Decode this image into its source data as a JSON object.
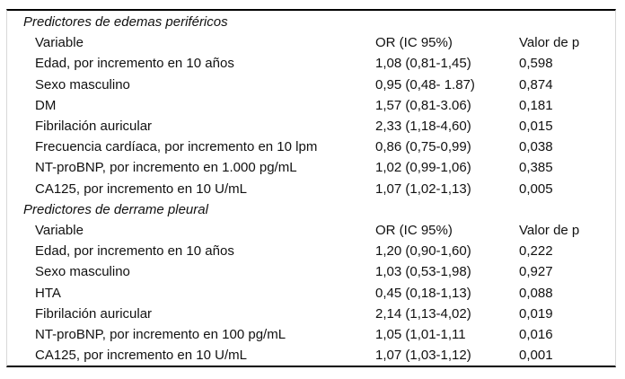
{
  "colors": {
    "rule": "#000000",
    "side_border": "#d8d8d8",
    "text": "#111111",
    "background": "#ffffff"
  },
  "sections": [
    {
      "title": "Predictores de edemas periféricos",
      "header": {
        "variable": "Variable",
        "or": "OR (IC 95%)",
        "p": "Valor de p"
      },
      "rows": [
        {
          "variable": "Edad, por incremento en 10 años",
          "or": "1,08 (0,81-1,45)",
          "p": "0,598"
        },
        {
          "variable": "Sexo masculino",
          "or": "0,95 (0,48- 1.87)",
          "p": "0,874"
        },
        {
          "variable": "DM",
          "or": "1,57 (0,81-3.06)",
          "p": "0,181"
        },
        {
          "variable": "Fibrilación auricular",
          "or": "2,33 (1,18-4,60)",
          "p": "0,015"
        },
        {
          "variable": "Frecuencia cardíaca, por incremento en 10 lpm",
          "or": "0,86 (0,75-0,99)",
          "p": "0,038"
        },
        {
          "variable": "NT-proBNP, por incremento en 1.000 pg/mL",
          "or": "1,02 (0,99-1,06)",
          "p": "0,385"
        },
        {
          "variable": "CA125, por incremento en 10 U/mL",
          "or": "1,07 (1,02-1,13)",
          "p": "0,005"
        }
      ]
    },
    {
      "title": "Predictores de derrame pleural",
      "header": {
        "variable": "Variable",
        "or": "OR (IC 95%)",
        "p": "Valor de p"
      },
      "rows": [
        {
          "variable": "Edad, por incremento en 10 años",
          "or": "1,20 (0,90-1,60)",
          "p": "0,222"
        },
        {
          "variable": "Sexo masculino",
          "or": "1,03 (0,53-1,98)",
          "p": "0,927"
        },
        {
          "variable": "HTA",
          "or": "0,45 (0,18-1,13)",
          "p": "0,088"
        },
        {
          "variable": "Fibrilación auricular",
          "or": "2,14 (1,13-4,02)",
          "p": "0,019"
        },
        {
          "variable": "NT-proBNP, por incremento en 100 pg/mL",
          "or": "1,05 (1,01-1,11",
          "p": "0,016"
        },
        {
          "variable": "CA125, por incremento en 10 U/mL",
          "or": "1,07 (1,03-1,12)",
          "p": "0,001"
        }
      ]
    }
  ]
}
